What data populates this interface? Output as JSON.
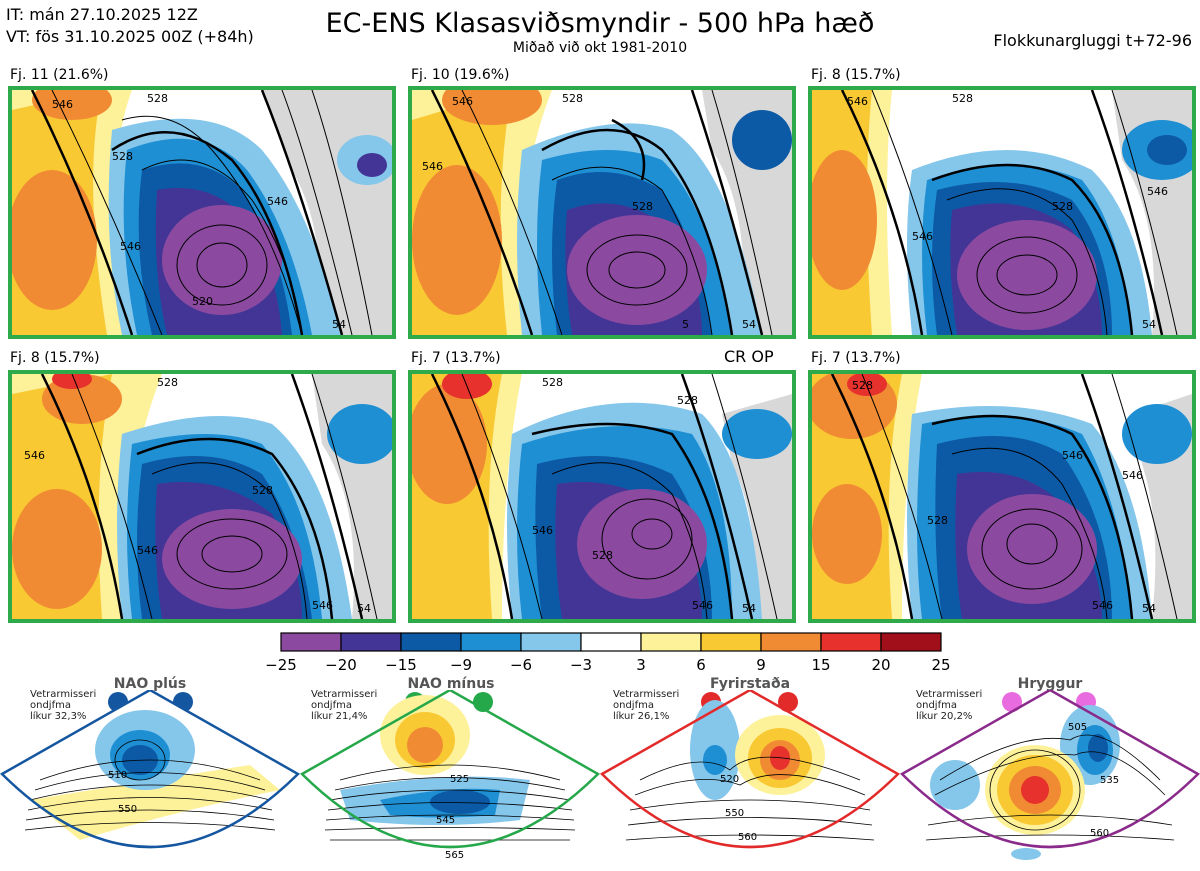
{
  "header": {
    "init_time": "IT: mán 27.10.2025 12Z",
    "valid_time": "VT: fös 31.10.2025 00Z  (+84h)",
    "title": "EC-ENS Klasasviðsmyndir - 500 hPa hæð",
    "subtitle": "Miðað við okt 1981-2010",
    "window": "Flokkunargluggi t+72-96"
  },
  "cr_op_label": "CR OP",
  "panels": [
    {
      "label": "Fj. 11 (21.6%)",
      "contours": [
        "546",
        "528",
        "528",
        "546",
        "520",
        "546",
        "54"
      ]
    },
    {
      "label": "Fj. 10 (19.6%)",
      "contours": [
        "546",
        "528",
        "528",
        "546",
        "5",
        "54"
      ]
    },
    {
      "label": "Fj. 8 (15.7%)",
      "contours": [
        "546",
        "528",
        "546",
        "528",
        "546",
        "54"
      ]
    },
    {
      "label": "Fj. 8 (15.7%)",
      "contours": [
        "546",
        "528",
        "528",
        "546",
        "546",
        "54"
      ]
    },
    {
      "label": "Fj. 7 (13.7%)",
      "contours": [
        "528",
        "528",
        "546",
        "528",
        "546",
        "54"
      ]
    },
    {
      "label": "Fj. 7 (13.7%)",
      "contours": [
        "528",
        "546",
        "528",
        "546",
        "546",
        "54"
      ]
    }
  ],
  "colorbar": {
    "ticks": [
      "−25",
      "−20",
      "−15",
      "−9",
      "−6",
      "−3",
      "3",
      "6",
      "9",
      "15",
      "20",
      "25"
    ],
    "colors": [
      "#8b4aa0",
      "#433596",
      "#0c5aa6",
      "#1f8fd3",
      "#85c6eb",
      "#ffffff",
      "#fdf19a",
      "#f9c934",
      "#f08b33",
      "#e6312c",
      "#a10f1a"
    ]
  },
  "regimes": [
    {
      "title": "NAO plús",
      "note": [
        "Vetrarmisseri",
        "ondjfma",
        "líkur 32,3%"
      ],
      "dot_color": "#1456a0",
      "border": "#1456a0",
      "contours": [
        "510",
        "550"
      ]
    },
    {
      "title": "NAO mínus",
      "note": [
        "Vetrarmisseri",
        "ondjfma",
        "líkur 21,4%"
      ],
      "dot_color": "#24a84a",
      "border": "#24a84a",
      "contours": [
        "525",
        "545",
        "565"
      ]
    },
    {
      "title": "Fyrirstaða",
      "note": [
        "Vetrarmisseri",
        "ondjfma",
        "líkur 26,1%"
      ],
      "dot_color": "#e32a2a",
      "border": "#e32a2a",
      "contours": [
        "520",
        "550",
        "560"
      ]
    },
    {
      "title": "Hryggur",
      "note": [
        "Vetrarmisseri",
        "ondjfma",
        "líkur 20,2%"
      ],
      "dot_color": "#e86be0",
      "border": "#8a2a8a",
      "contours": [
        "505",
        "535",
        "560"
      ]
    }
  ]
}
